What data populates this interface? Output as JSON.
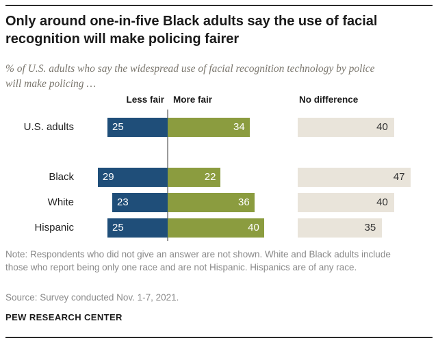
{
  "meta": {
    "title": "Only around one-in-five Black adults say the use of facial recognition will make policing fairer",
    "subtitle": "% of U.S. adults who say the widespread use of facial recognition technology by police will make policing …",
    "note": "Note: Respondents who did not give an answer are not shown. White and Black adults include those who report being only one race and are not Hispanic. Hispanics are of any race.",
    "source": "Source: Survey conducted Nov. 1-7, 2021.",
    "brand": "PEW RESEARCH CENTER"
  },
  "chart_data": {
    "type": "bar",
    "variant": "diverging-horizontal",
    "title": "Only around one-in-five Black adults say the use of facial recognition will make policing fairer",
    "subtitle": "% of U.S. adults who say the widespread use of facial recognition technology by police will make policing …",
    "categories": [
      "U.S. adults",
      "Black",
      "White",
      "Hispanic"
    ],
    "series": [
      {
        "name": "Less fair",
        "color": "#1f4e79",
        "values": [
          25,
          29,
          23,
          25
        ]
      },
      {
        "name": "More fair",
        "color": "#8b9c3f",
        "values": [
          34,
          22,
          36,
          40
        ]
      },
      {
        "name": "No difference",
        "color": "#e9e4da",
        "values": [
          40,
          47,
          40,
          35
        ]
      }
    ],
    "legend_position": "column-headers",
    "grid": false,
    "value_labels": "inside-bars",
    "colors": {
      "less_fair": "#1f4e79",
      "more_fair": "#8b9c3f",
      "no_difference": "#e9e4da",
      "axis_line": "#9a9a9a"
    }
  }
}
